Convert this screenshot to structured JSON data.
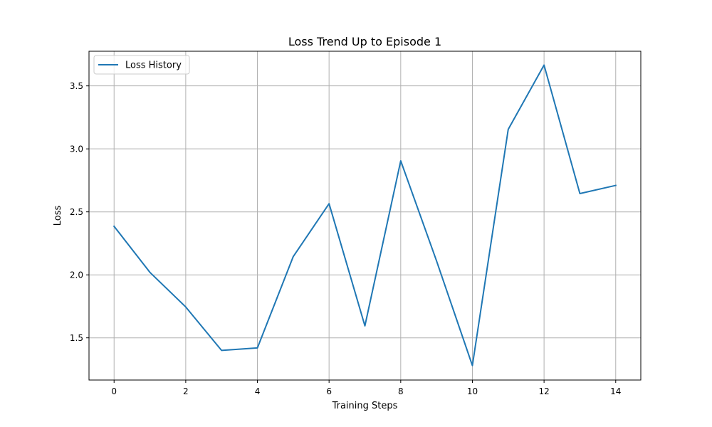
{
  "chart_data": {
    "type": "line",
    "title": "Loss Trend Up to Episode 1",
    "xlabel": "Training Steps",
    "ylabel": "Loss",
    "xlim": [
      -0.7,
      14.7
    ],
    "ylim": [
      1.165,
      3.775
    ],
    "xticks": [
      0,
      2,
      4,
      6,
      8,
      10,
      12,
      14
    ],
    "yticks": [
      1.5,
      2.0,
      2.5,
      3.0,
      3.5
    ],
    "ytick_labels": [
      "1.5",
      "2.0",
      "2.5",
      "3.0",
      "3.5"
    ],
    "grid": true,
    "legend_position": "top-left",
    "series": [
      {
        "name": "Loss History",
        "color": "#1f77b4",
        "x": [
          0,
          1,
          2,
          3,
          4,
          5,
          6,
          7,
          8,
          9,
          10,
          11,
          12,
          13,
          14
        ],
        "values": [
          2.385,
          2.02,
          1.745,
          1.4,
          1.42,
          2.145,
          2.565,
          1.595,
          2.905,
          2.11,
          1.28,
          3.155,
          3.665,
          2.645,
          2.71
        ]
      }
    ]
  }
}
